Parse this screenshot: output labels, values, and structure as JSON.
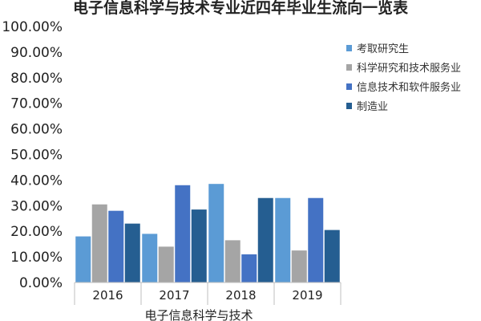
{
  "chart_data": {
    "type": "bar",
    "title": "电子信息科学与技术专业近四年毕业生流向一览表",
    "xlabel": "电子信息科学与技术",
    "ylabel": "",
    "categories": [
      "2016",
      "2017",
      "2018",
      "2019"
    ],
    "ylim": [
      0,
      100
    ],
    "yticks": [
      "0.00%",
      "10.00%",
      "20.00%",
      "30.00%",
      "40.00%",
      "50.00%",
      "60.00%",
      "70.00%",
      "80.00%",
      "90.00%",
      "100.00%"
    ],
    "grid": false,
    "legend_position": "right",
    "series": [
      {
        "name": "考取研究生",
        "color": "#5b9bd5",
        "values": [
          18,
          19,
          38.5,
          33
        ]
      },
      {
        "name": "科学研究和技术服务业",
        "color": "#a5a5a5",
        "values": [
          30.5,
          14,
          16.5,
          12.5
        ]
      },
      {
        "name": "信息技术和软件服务业",
        "color": "#4472c4",
        "values": [
          28,
          38,
          11,
          33
        ]
      },
      {
        "name": "制造业",
        "color": "#255e91",
        "values": [
          23,
          28.5,
          33,
          20.5
        ]
      }
    ]
  }
}
